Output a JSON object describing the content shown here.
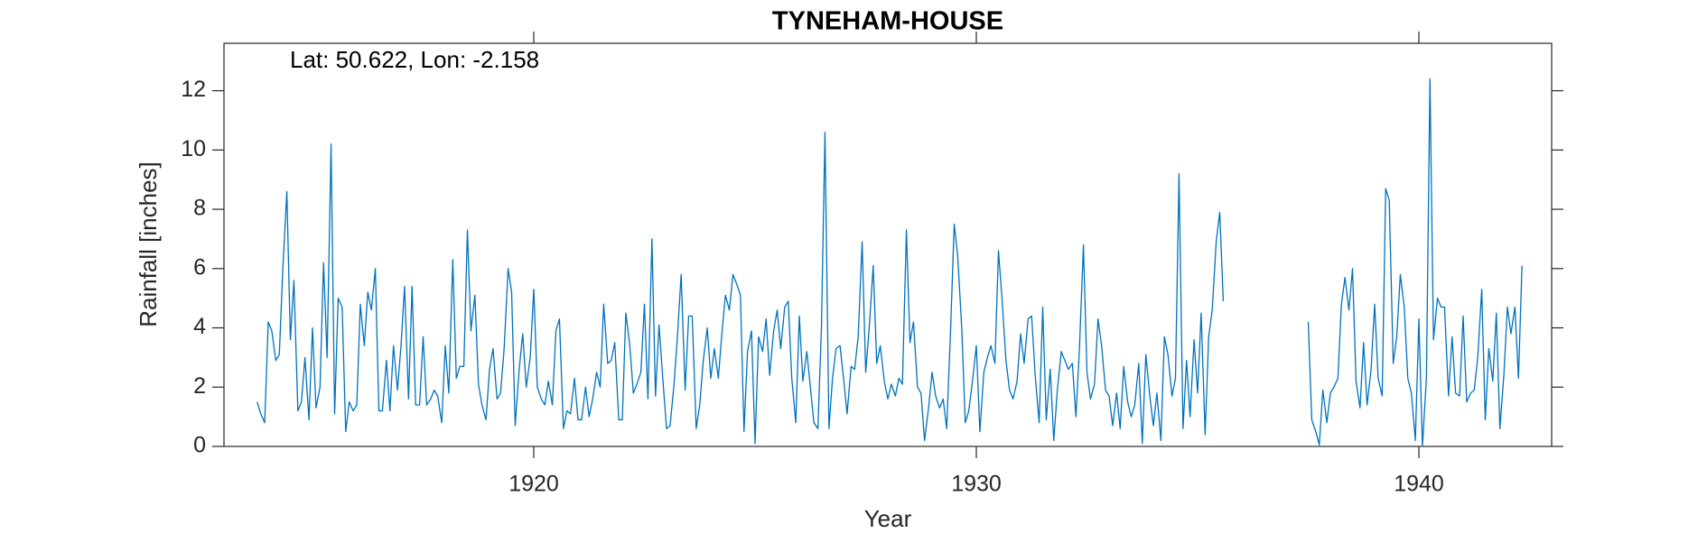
{
  "chart_data": {
    "type": "line",
    "title": "TYNEHAM-HOUSE",
    "annotation": "Lat: 50.622, Lon: -2.158",
    "xlabel": "Year",
    "ylabel": "Rainfall [inches]",
    "xlim": [
      1913,
      1943
    ],
    "ylim": [
      0,
      13.6
    ],
    "xticks": [
      1920,
      1930,
      1940
    ],
    "yticks": [
      0,
      2,
      4,
      6,
      8,
      10,
      12
    ],
    "grid": false,
    "x": [
      1913.75,
      1913.83,
      1913.92,
      1914.0,
      1914.08,
      1914.17,
      1914.25,
      1914.33,
      1914.42,
      1914.5,
      1914.58,
      1914.67,
      1914.75,
      1914.83,
      1914.92,
      1915.0,
      1915.08,
      1915.17,
      1915.25,
      1915.33,
      1915.42,
      1915.5,
      1915.58,
      1915.67,
      1915.75,
      1915.83,
      1915.92,
      1916.0,
      1916.08,
      1916.17,
      1916.25,
      1916.33,
      1916.42,
      1916.5,
      1916.58,
      1916.67,
      1916.75,
      1916.83,
      1916.92,
      1917.0,
      1917.08,
      1917.17,
      1917.25,
      1917.33,
      1917.42,
      1917.5,
      1917.58,
      1917.67,
      1917.75,
      1917.83,
      1917.92,
      1918.0,
      1918.08,
      1918.17,
      1918.25,
      1918.33,
      1918.42,
      1918.5,
      1918.58,
      1918.67,
      1918.75,
      1918.83,
      1918.92,
      1919.0,
      1919.08,
      1919.17,
      1919.25,
      1919.33,
      1919.42,
      1919.5,
      1919.58,
      1919.67,
      1919.75,
      1919.83,
      1919.92,
      1920.0,
      1920.08,
      1920.17,
      1920.25,
      1920.33,
      1920.42,
      1920.5,
      1920.58,
      1920.67,
      1920.75,
      1920.83,
      1920.92,
      1921.0,
      1921.08,
      1921.17,
      1921.25,
      1921.33,
      1921.42,
      1921.5,
      1921.58,
      1921.67,
      1921.75,
      1921.83,
      1921.92,
      1922.0,
      1922.08,
      1922.17,
      1922.25,
      1922.33,
      1922.42,
      1922.5,
      1922.58,
      1922.67,
      1922.75,
      1922.83,
      1922.92,
      1923.0,
      1923.08,
      1923.17,
      1923.25,
      1923.33,
      1923.42,
      1923.5,
      1923.58,
      1923.67,
      1923.75,
      1923.83,
      1923.92,
      1924.0,
      1924.08,
      1924.17,
      1924.25,
      1924.33,
      1924.42,
      1924.5,
      1924.58,
      1924.67,
      1924.75,
      1924.83,
      1924.92,
      1925.0,
      1925.08,
      1925.17,
      1925.25,
      1925.33,
      1925.42,
      1925.5,
      1925.58,
      1925.67,
      1925.75,
      1925.83,
      1925.92,
      1926.0,
      1926.08,
      1926.17,
      1926.25,
      1926.33,
      1926.42,
      1926.5,
      1926.58,
      1926.67,
      1926.75,
      1926.83,
      1926.92,
      1927.0,
      1927.08,
      1927.17,
      1927.25,
      1927.33,
      1927.42,
      1927.5,
      1927.58,
      1927.67,
      1927.75,
      1927.83,
      1927.92,
      1928.0,
      1928.08,
      1928.17,
      1928.25,
      1928.33,
      1928.42,
      1928.5,
      1928.58,
      1928.67,
      1928.75,
      1928.83,
      1928.92,
      1929.0,
      1929.08,
      1929.17,
      1929.25,
      1929.33,
      1929.42,
      1929.5,
      1929.58,
      1929.67,
      1929.75,
      1929.83,
      1929.92,
      1930.0,
      1930.08,
      1930.17,
      1930.25,
      1930.33,
      1930.42,
      1930.5,
      1930.58,
      1930.67,
      1930.75,
      1930.83,
      1930.92,
      1931.0,
      1931.08,
      1931.17,
      1931.25,
      1931.33,
      1931.42,
      1931.5,
      1931.58,
      1931.67,
      1931.75,
      1931.83,
      1931.92,
      1932.0,
      1932.08,
      1932.17,
      1932.25,
      1932.33,
      1932.42,
      1932.5,
      1932.58,
      1932.67,
      1932.75,
      1932.83,
      1932.92,
      1933.0,
      1933.08,
      1933.17,
      1933.25,
      1933.33,
      1933.42,
      1933.5,
      1933.58,
      1933.67,
      1933.75,
      1933.83,
      1933.92,
      1934.0,
      1934.08,
      1934.17,
      1934.25,
      1934.33,
      1934.42,
      1934.5,
      1934.58,
      1934.67,
      1934.75,
      1934.83,
      1934.92,
      1935.0,
      1935.08,
      1935.17,
      1935.25,
      1935.33,
      1935.42,
      1935.5,
      1935.58,
      1935.67,
      1935.75,
      1935.83,
      1935.92,
      1936.0,
      1936.08,
      1936.17,
      1936.25,
      1936.33,
      1936.42,
      1936.5,
      1936.58,
      1936.67,
      1936.75,
      1936.83,
      1936.92,
      1937.0,
      1937.08,
      1937.17,
      1937.25,
      1937.33,
      1937.42,
      1937.5,
      1937.58,
      1937.67,
      1937.75,
      1937.83,
      1937.92,
      1938.0,
      1938.08,
      1938.17,
      1938.25,
      1938.33,
      1938.42,
      1938.5,
      1938.58,
      1938.67,
      1938.75,
      1938.83,
      1938.92,
      1939.0,
      1939.08,
      1939.17,
      1939.25,
      1939.33,
      1939.42,
      1939.5,
      1939.58,
      1939.67,
      1939.75,
      1939.83,
      1939.92,
      1940.0,
      1940.08,
      1940.17,
      1940.25,
      1940.33,
      1940.42,
      1940.5,
      1940.58,
      1940.67,
      1940.75,
      1940.83,
      1940.92,
      1941.0,
      1941.08,
      1941.17,
      1941.25,
      1941.33,
      1941.42,
      1941.5,
      1941.58,
      1941.67,
      1941.75,
      1941.83,
      1941.92,
      1942.0,
      1942.08,
      1942.17,
      1942.25,
      1942.33
    ],
    "series": [
      {
        "color": "#0072bd",
        "values": [
          1.5,
          1.1,
          0.8,
          4.2,
          3.9,
          2.9,
          3.1,
          6.0,
          8.6,
          3.6,
          5.6,
          1.2,
          1.5,
          3.0,
          0.9,
          4.0,
          1.3,
          2.0,
          6.2,
          3.0,
          10.2,
          1.1,
          5.0,
          4.7,
          0.5,
          1.5,
          1.2,
          1.4,
          4.8,
          3.4,
          5.2,
          4.6,
          6.0,
          1.2,
          1.2,
          2.9,
          1.2,
          3.4,
          1.9,
          3.4,
          5.4,
          1.6,
          5.4,
          1.4,
          1.4,
          3.7,
          1.4,
          1.6,
          1.9,
          1.7,
          0.8,
          3.4,
          1.8,
          6.3,
          2.3,
          2.7,
          2.7,
          7.3,
          3.9,
          5.1,
          2.1,
          1.4,
          0.9,
          2.6,
          3.3,
          1.6,
          1.8,
          3.3,
          6.0,
          5.2,
          0.7,
          2.6,
          3.8,
          2.0,
          3.0,
          5.3,
          2.0,
          1.6,
          1.4,
          2.2,
          1.4,
          3.9,
          4.3,
          0.6,
          1.2,
          1.1,
          2.3,
          0.9,
          0.9,
          2.0,
          1.0,
          1.6,
          2.5,
          2.0,
          4.8,
          2.8,
          2.9,
          3.5,
          0.9,
          0.9,
          4.5,
          3.4,
          1.8,
          2.1,
          2.5,
          4.8,
          1.6,
          7.0,
          1.7,
          4.1,
          2.2,
          0.6,
          0.7,
          2.1,
          3.8,
          5.8,
          1.9,
          4.4,
          4.4,
          0.6,
          1.4,
          2.9,
          4.0,
          2.3,
          3.3,
          2.3,
          3.8,
          5.1,
          4.6,
          5.8,
          5.5,
          5.1,
          0.5,
          3.2,
          3.9,
          0.1,
          3.7,
          3.2,
          4.3,
          2.4,
          3.9,
          4.6,
          3.3,
          4.7,
          4.9,
          2.3,
          0.8,
          4.4,
          2.2,
          3.2,
          2.0,
          0.8,
          0.6,
          4.0,
          10.6,
          0.6,
          2.3,
          3.3,
          3.4,
          2.3,
          1.1,
          2.7,
          2.6,
          3.7,
          6.9,
          2.5,
          4.0,
          6.1,
          2.8,
          3.4,
          2.2,
          1.6,
          2.1,
          1.7,
          2.3,
          2.1,
          7.3,
          3.5,
          4.2,
          2.0,
          1.8,
          0.2,
          1.3,
          2.5,
          1.7,
          1.3,
          1.6,
          0.6,
          4.0,
          7.5,
          6.4,
          4.0,
          0.8,
          1.2,
          2.3,
          3.4,
          0.5,
          2.5,
          3.0,
          3.4,
          2.8,
          6.6,
          5.0,
          2.9,
          1.9,
          1.6,
          2.2,
          3.8,
          2.8,
          4.3,
          4.4,
          2.4,
          0.8,
          4.7,
          0.9,
          2.6,
          0.2,
          1.9,
          3.2,
          2.9,
          2.6,
          2.8,
          1.0,
          3.3,
          6.8,
          2.5,
          1.6,
          2.1,
          4.3,
          3.4,
          1.9,
          1.7,
          0.7,
          1.8,
          0.6,
          2.7,
          1.5,
          1.0,
          1.4,
          2.8,
          0.1,
          3.1,
          1.7,
          0.7,
          1.8,
          0.2,
          3.7,
          3.1,
          1.7,
          2.3,
          9.2,
          0.6,
          2.9,
          1.0,
          3.6,
          1.8,
          4.5,
          0.4,
          3.7,
          4.6,
          6.9,
          7.9,
          4.9,
          null,
          null,
          null,
          null,
          null,
          null,
          null,
          null,
          null,
          null,
          null,
          null,
          null,
          null,
          null,
          null,
          null,
          null,
          null,
          null,
          null,
          null,
          4.2,
          0.9,
          0.5,
          0.05,
          1.9,
          0.8,
          1.8,
          2.0,
          2.3,
          4.8,
          5.7,
          4.6,
          6.0,
          2.2,
          1.3,
          3.5,
          1.4,
          2.6,
          4.8,
          2.3,
          1.7,
          8.7,
          8.3,
          2.8,
          3.7,
          5.8,
          4.7,
          2.3,
          1.8,
          0.2,
          4.3,
          0.0,
          2.3,
          12.4,
          3.6,
          5.0,
          4.7,
          4.7,
          1.7,
          3.7,
          1.8,
          1.7,
          4.4,
          1.5,
          1.8,
          1.9,
          3.0,
          5.3,
          0.9,
          3.3,
          2.2,
          4.5,
          0.6,
          2.4,
          4.7,
          3.8,
          4.7,
          2.3,
          6.1
        ]
      }
    ]
  }
}
